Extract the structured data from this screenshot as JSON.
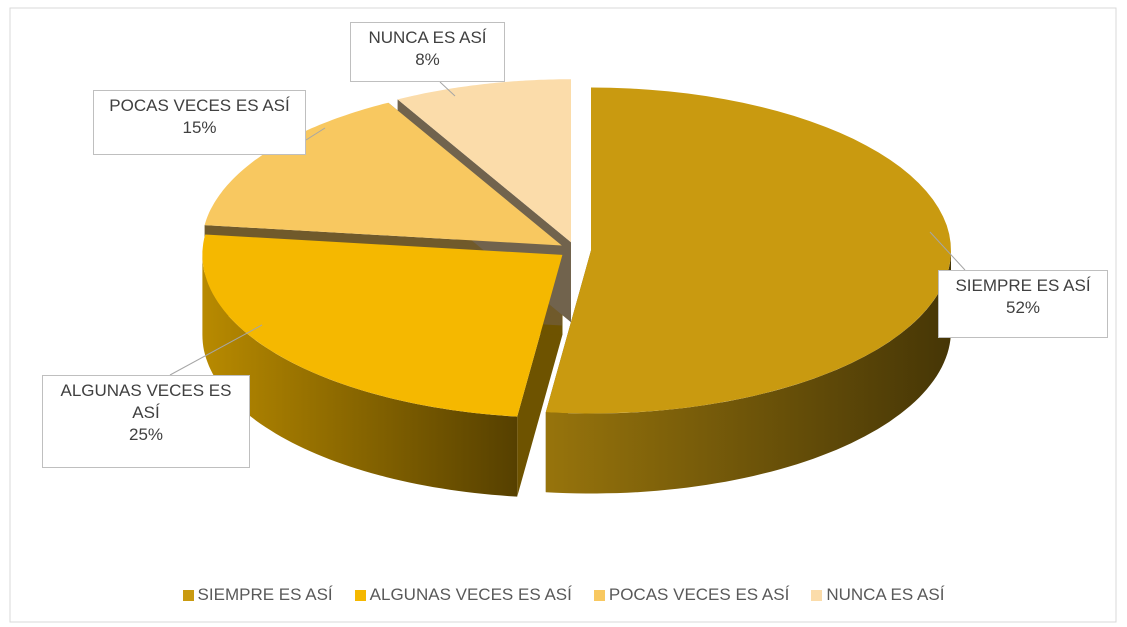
{
  "chart_data": {
    "type": "pie",
    "categories": [
      "SIEMPRE ES ASÍ",
      "ALGUNAS VECES ES ASÍ",
      "POCAS VECES ES ASÍ",
      "NUNCA ES ASÍ"
    ],
    "values": [
      52,
      25,
      15,
      8
    ],
    "value_labels": [
      "52%",
      "25%",
      "15%",
      "8%"
    ],
    "colors": [
      "#c99a10",
      "#f5b800",
      "#f8c860",
      "#fbdcaa"
    ],
    "legend": "bottom"
  }
}
